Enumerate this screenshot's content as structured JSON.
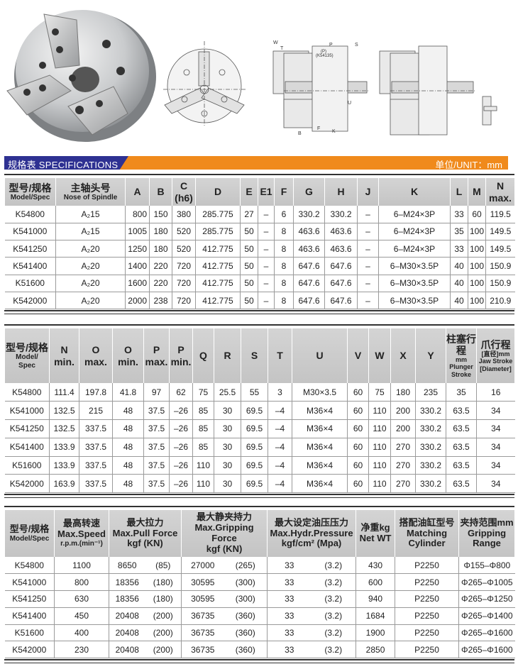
{
  "drawing_labels": {
    "w": "W",
    "t": "T",
    "p": "P",
    "s": "S",
    "p_paren": "(P)",
    "model_ref": "(K54135)",
    "u": "U",
    "k": "K",
    "b": "B",
    "f": "F"
  },
  "spec_bar": {
    "title": "规格表  SPECIFICATIONS",
    "unit": "单位/UNIT：mm",
    "colors": {
      "blue": "#2e3192",
      "orange": "#f08a1c"
    }
  },
  "table1": {
    "headers": [
      [
        "型号/规格",
        "Model/Spec"
      ],
      [
        "主轴头号",
        "Nose of Spindle"
      ],
      [
        "A"
      ],
      [
        "B"
      ],
      [
        "C",
        "(h6)"
      ],
      [
        "D"
      ],
      [
        "E"
      ],
      [
        "E1"
      ],
      [
        "F"
      ],
      [
        "G"
      ],
      [
        "H"
      ],
      [
        "J"
      ],
      [
        "K"
      ],
      [
        "L"
      ],
      [
        "M"
      ],
      [
        "N",
        "max."
      ]
    ],
    "rows": [
      [
        "K54800",
        "A₂15",
        "800",
        "150",
        "380",
        "285.775",
        "27",
        "–",
        "6",
        "330.2",
        "330.2",
        "–",
        "6–M24×3P",
        "33",
        "60",
        "119.5"
      ],
      [
        "K541000",
        "A₂15",
        "1005",
        "180",
        "520",
        "285.775",
        "50",
        "–",
        "8",
        "463.6",
        "463.6",
        "–",
        "6–M24×3P",
        "35",
        "100",
        "149.5"
      ],
      [
        "K541250",
        "A₂20",
        "1250",
        "180",
        "520",
        "412.775",
        "50",
        "–",
        "8",
        "463.6",
        "463.6",
        "–",
        "6–M24×3P",
        "33",
        "100",
        "149.5"
      ],
      [
        "K541400",
        "A₂20",
        "1400",
        "220",
        "720",
        "412.775",
        "50",
        "–",
        "8",
        "647.6",
        "647.6",
        "–",
        "6–M30×3.5P",
        "40",
        "100",
        "150.9"
      ],
      [
        "K51600",
        "A₂20",
        "1600",
        "220",
        "720",
        "412.775",
        "50",
        "–",
        "8",
        "647.6",
        "647.6",
        "–",
        "6–M30×3.5P",
        "40",
        "100",
        "150.9"
      ],
      [
        "K542000",
        "A₂20",
        "2000",
        "238",
        "720",
        "412.775",
        "50",
        "–",
        "8",
        "647.6",
        "647.6",
        "–",
        "6–M30×3.5P",
        "40",
        "100",
        "210.9"
      ]
    ]
  },
  "table2": {
    "headers": [
      [
        "型号/规格",
        "Model/",
        "Spec"
      ],
      [
        "N",
        "min."
      ],
      [
        "O",
        "max."
      ],
      [
        "O",
        "min."
      ],
      [
        "P",
        "max."
      ],
      [
        "P",
        "min."
      ],
      [
        "Q"
      ],
      [
        "R"
      ],
      [
        "S"
      ],
      [
        "T"
      ],
      [
        "U"
      ],
      [
        "V"
      ],
      [
        "W"
      ],
      [
        "X"
      ],
      [
        "Y"
      ],
      [
        "柱塞行程",
        "mm",
        "Plunger",
        "Stroke"
      ],
      [
        "爪行程",
        "[直径]mm",
        "Jaw Stroke",
        "[Diameter]"
      ]
    ],
    "rows": [
      [
        "K54800",
        "111.4",
        "197.8",
        "41.8",
        "97",
        "62",
        "75",
        "25.5",
        "55",
        "3",
        "M30×3.5",
        "60",
        "75",
        "180",
        "235",
        "35",
        "16"
      ],
      [
        "K541000",
        "132.5",
        "215",
        "48",
        "37.5",
        "–26",
        "85",
        "30",
        "69.5",
        "–4",
        "M36×4",
        "60",
        "110",
        "200",
        "330.2",
        "63.5",
        "34"
      ],
      [
        "K541250",
        "132.5",
        "337.5",
        "48",
        "37.5",
        "–26",
        "85",
        "30",
        "69.5",
        "–4",
        "M36×4",
        "60",
        "110",
        "200",
        "330.2",
        "63.5",
        "34"
      ],
      [
        "K541400",
        "133.9",
        "337.5",
        "48",
        "37.5",
        "–26",
        "85",
        "30",
        "69.5",
        "–4",
        "M36×4",
        "60",
        "110",
        "270",
        "330.2",
        "63.5",
        "34"
      ],
      [
        "K51600",
        "133.9",
        "337.5",
        "48",
        "37.5",
        "–26",
        "110",
        "30",
        "69.5",
        "–4",
        "M36×4",
        "60",
        "110",
        "270",
        "330.2",
        "63.5",
        "34"
      ],
      [
        "K542000",
        "163.9",
        "337.5",
        "48",
        "37.5",
        "–26",
        "110",
        "30",
        "69.5",
        "–4",
        "M36×4",
        "60",
        "110",
        "270",
        "330.2",
        "63.5",
        "34"
      ]
    ]
  },
  "table3": {
    "headers": [
      [
        "型号/规格",
        "Model/Spec"
      ],
      [
        "最高转速",
        "Max.Speed",
        "r.p.m.(min⁻¹)"
      ],
      [
        "最大拉力",
        "Max.Pull Force",
        "kgf      (KN)"
      ],
      [
        "最大静夹持力",
        "Max.Gripping Force",
        "kgf          (KN)"
      ],
      [
        "最大设定油压压力",
        "Max.Hydr.Pressure",
        "kgf/cm²      (Mpa)"
      ],
      [
        "净重kg",
        "Net WT"
      ],
      [
        "搭配油缸型号",
        "Matching",
        "Cylinder"
      ],
      [
        "夹持范围mm",
        "Gripping",
        "Range"
      ]
    ],
    "rows": [
      [
        "K54800",
        "1100",
        "8650",
        "(85)",
        "27000",
        "(265)",
        "33",
        "(3.2)",
        "430",
        "P2250",
        "Φ155–Φ800"
      ],
      [
        "K541000",
        "800",
        "18356",
        "(180)",
        "30595",
        "(300)",
        "33",
        "(3.2)",
        "600",
        "P2250",
        "Φ265–Φ1005"
      ],
      [
        "K541250",
        "630",
        "18356",
        "(180)",
        "30595",
        "(300)",
        "33",
        "(3.2)",
        "940",
        "P2250",
        "Φ265–Φ1250"
      ],
      [
        "K541400",
        "450",
        "20408",
        "(200)",
        "36735",
        "(360)",
        "33",
        "(3.2)",
        "1684",
        "P2250",
        "Φ265–Φ1400"
      ],
      [
        "K51600",
        "400",
        "20408",
        "(200)",
        "36735",
        "(360)",
        "33",
        "(3.2)",
        "1900",
        "P2250",
        "Φ265–Φ1600"
      ],
      [
        "K542000",
        "230",
        "20408",
        "(200)",
        "36735",
        "(360)",
        "33",
        "(3.2)",
        "2850",
        "P2250",
        "Φ265–Φ1600"
      ]
    ]
  }
}
